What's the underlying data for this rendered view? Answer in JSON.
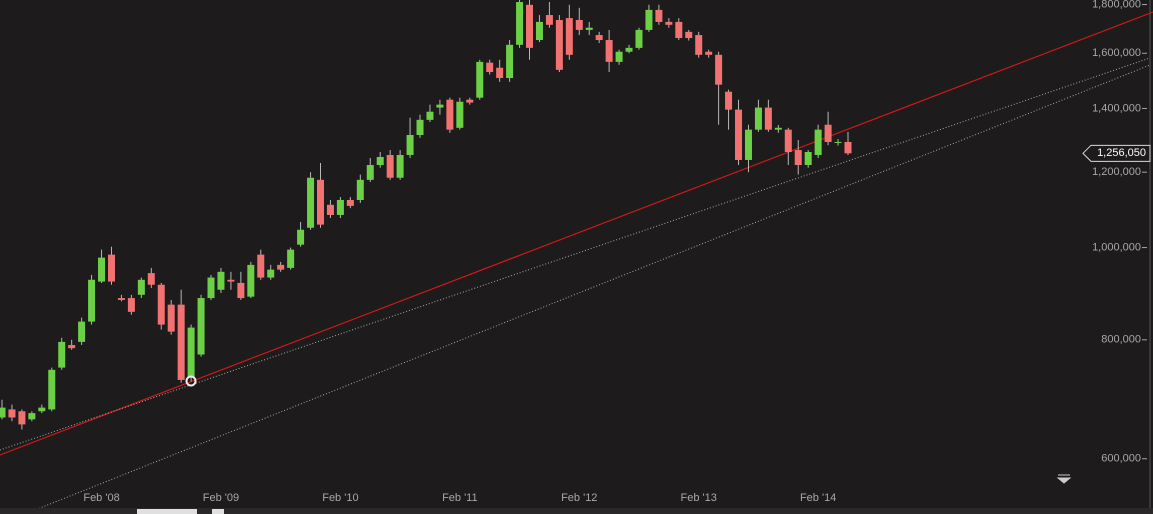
{
  "chart_data": {
    "type": "candlestick",
    "log_scale": true,
    "categories": [
      null,
      null,
      null,
      null,
      null,
      null,
      null,
      null,
      null,
      null,
      "Feb '08",
      null,
      null,
      null,
      null,
      null,
      null,
      null,
      null,
      null,
      null,
      null,
      "Feb '09",
      null,
      null,
      null,
      null,
      null,
      null,
      null,
      null,
      null,
      null,
      null,
      "Feb '10",
      null,
      null,
      null,
      null,
      null,
      null,
      null,
      null,
      null,
      null,
      null,
      "Feb '11",
      null,
      null,
      null,
      null,
      null,
      null,
      null,
      null,
      null,
      null,
      null,
      "Feb '12",
      null,
      null,
      null,
      null,
      null,
      null,
      null,
      null,
      null,
      null,
      null,
      "Feb '13",
      null,
      null,
      null,
      null,
      null,
      null,
      null,
      null,
      null,
      null,
      null,
      "Feb '14",
      null,
      null,
      null
    ],
    "open": [
      663000,
      676000,
      673000,
      660000,
      673000,
      676000,
      748000,
      790000,
      796000,
      836000,
      921000,
      983000,
      885000,
      885000,
      892000,
      940000,
      914000,
      871000,
      871000,
      730000,
      772000,
      885000,
      903000,
      925000,
      918000,
      888000,
      983000,
      930000,
      959000,
      952000,
      1007000,
      1049000,
      1178000,
      1109000,
      1082000,
      1122000,
      1122000,
      1178000,
      1221000,
      1251000,
      1184000,
      1251000,
      1313000,
      1362000,
      1403000,
      1430000,
      1336000,
      1430000,
      1437000,
      1564000,
      1545000,
      1507000,
      1633000,
      1799000,
      1652000,
      1755000,
      1734000,
      1742000,
      1734000,
      1693000,
      1672000,
      1652000,
      1567000,
      1606000,
      1621000,
      1693000,
      1777000,
      1726000,
      1726000,
      1685000,
      1672000,
      1606000,
      1594000,
      1458000,
      1396000,
      1236000,
      1330000,
      1403000,
      1330000,
      1330000,
      1266000,
      1221000,
      1251000,
      1346000,
      1288000,
      1291000
    ],
    "high": [
      692000,
      684000,
      676000,
      673000,
      684000,
      748000,
      804000,
      800000,
      844000,
      936000,
      995000,
      1002000,
      892000,
      892000,
      930000,
      952000,
      918000,
      881000,
      903000,
      830000,
      892000,
      936000,
      952000,
      943000,
      943000,
      966000,
      995000,
      959000,
      966000,
      1000000,
      1064000,
      1200000,
      1227000,
      1122000,
      1130000,
      1130000,
      1193000,
      1242000,
      1260000,
      1266000,
      1266000,
      1369000,
      1379000,
      1413000,
      1430000,
      1437000,
      1437000,
      1437000,
      1575000,
      1575000,
      1575000,
      1652000,
      1820000,
      1820000,
      1755000,
      1811000,
      1755000,
      1799000,
      1786000,
      1726000,
      1685000,
      1693000,
      1614000,
      1633000,
      1702000,
      1799000,
      1799000,
      1742000,
      1742000,
      1693000,
      1685000,
      1614000,
      1606000,
      1465000,
      1430000,
      1346000,
      1430000,
      1430000,
      1345000,
      1336000,
      1297000,
      1266000,
      1346000,
      1389000,
      1300000,
      1323000
    ],
    "low": [
      660000,
      657000,
      644000,
      657000,
      670000,
      673000,
      744000,
      781000,
      790000,
      830000,
      918000,
      914000,
      878000,
      850000,
      885000,
      907000,
      820000,
      810000,
      721000,
      723000,
      768000,
      881000,
      896000,
      903000,
      881000,
      885000,
      925000,
      925000,
      943000,
      948000,
      1002000,
      1044000,
      1049000,
      1074000,
      1074000,
      1100000,
      1114000,
      1172000,
      1213000,
      1178000,
      1178000,
      1242000,
      1304000,
      1355000,
      1379000,
      1320000,
      1330000,
      1413000,
      1430000,
      1520000,
      1493000,
      1493000,
      1621000,
      1575000,
      1644000,
      1702000,
      1529000,
      1575000,
      1672000,
      1672000,
      1640000,
      1529000,
      1556000,
      1600000,
      1614000,
      1685000,
      1714000,
      1702000,
      1652000,
      1650000,
      1583000,
      1583000,
      1346000,
      1330000,
      1221000,
      1200000,
      1323000,
      1323000,
      1320000,
      1221000,
      1193000,
      1213000,
      1242000,
      1281000,
      1280000,
      1251000
    ],
    "close": [
      679000,
      663000,
      652000,
      670000,
      679000,
      744000,
      796000,
      784000,
      836000,
      925000,
      976000,
      921000,
      881000,
      856000,
      925000,
      914000,
      830000,
      816000,
      726000,
      824000,
      885000,
      930000,
      943000,
      921000,
      885000,
      959000,
      930000,
      948000,
      948000,
      995000,
      1044000,
      1184000,
      1057000,
      1082000,
      1122000,
      1106000,
      1178000,
      1221000,
      1245000,
      1184000,
      1251000,
      1313000,
      1362000,
      1389000,
      1413000,
      1330000,
      1423000,
      1420000,
      1567000,
      1529000,
      1507000,
      1633000,
      1811000,
      1621000,
      1726000,
      1714000,
      1537000,
      1594000,
      1693000,
      1702000,
      1652000,
      1567000,
      1606000,
      1621000,
      1693000,
      1777000,
      1726000,
      1714000,
      1660000,
      1660000,
      1594000,
      1594000,
      1483000,
      1396000,
      1236000,
      1330000,
      1403000,
      1330000,
      1336000,
      1260000,
      1221000,
      1260000,
      1330000,
      1291000,
      1291000,
      1256050
    ],
    "up_color": "#6cd046",
    "down_color": "#f27272",
    "ylim": [
      559000,
      1820000
    ],
    "yticks": [
      {
        "value": 600000,
        "label": "600,000"
      },
      {
        "value": 800000,
        "label": "800,000"
      },
      {
        "value": 1000000,
        "label": "1,000,000"
      },
      {
        "value": 1200000,
        "label": "1,200,000"
      },
      {
        "value": 1400000,
        "label": "1,400,000"
      },
      {
        "value": 1600000,
        "label": "1,600,000"
      },
      {
        "value": 1800000,
        "label": "1,800,000"
      }
    ],
    "last_price": {
      "value": 1256050,
      "label": "1,256,050"
    }
  }
}
